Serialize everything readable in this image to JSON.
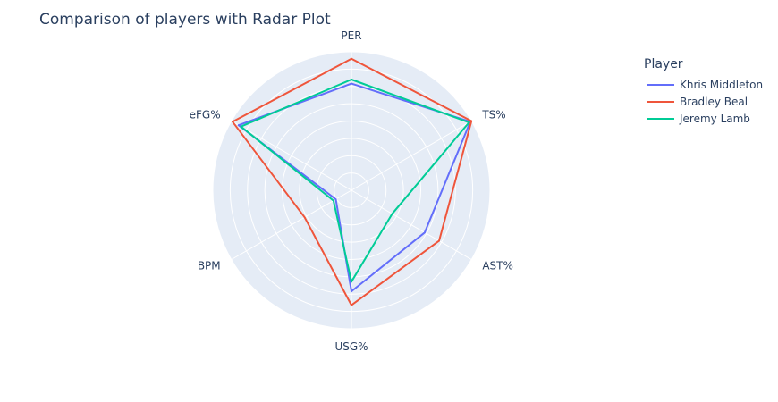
{
  "chart_data": {
    "type": "radar",
    "title": "Comparison of players with Radar Plot",
    "axes": [
      "PER",
      "TS%",
      "AST%",
      "USG%",
      "BPM",
      "eFG%"
    ],
    "range": [
      0,
      1
    ],
    "grid": true,
    "legend": {
      "title": "Player",
      "placement": "top-right"
    },
    "series": [
      {
        "name": "Khris Middleton",
        "color": "#636efa",
        "values": [
          0.77,
          0.99,
          0.61,
          0.73,
          0.13,
          0.94
        ]
      },
      {
        "name": "Bradley Beal",
        "color": "#ef553b",
        "values": [
          0.95,
          1.0,
          0.73,
          0.83,
          0.39,
          0.99
        ]
      },
      {
        "name": "Jeremy Lamb",
        "color": "#00cc96",
        "values": [
          0.8,
          0.98,
          0.34,
          0.66,
          0.15,
          0.92
        ]
      }
    ]
  }
}
